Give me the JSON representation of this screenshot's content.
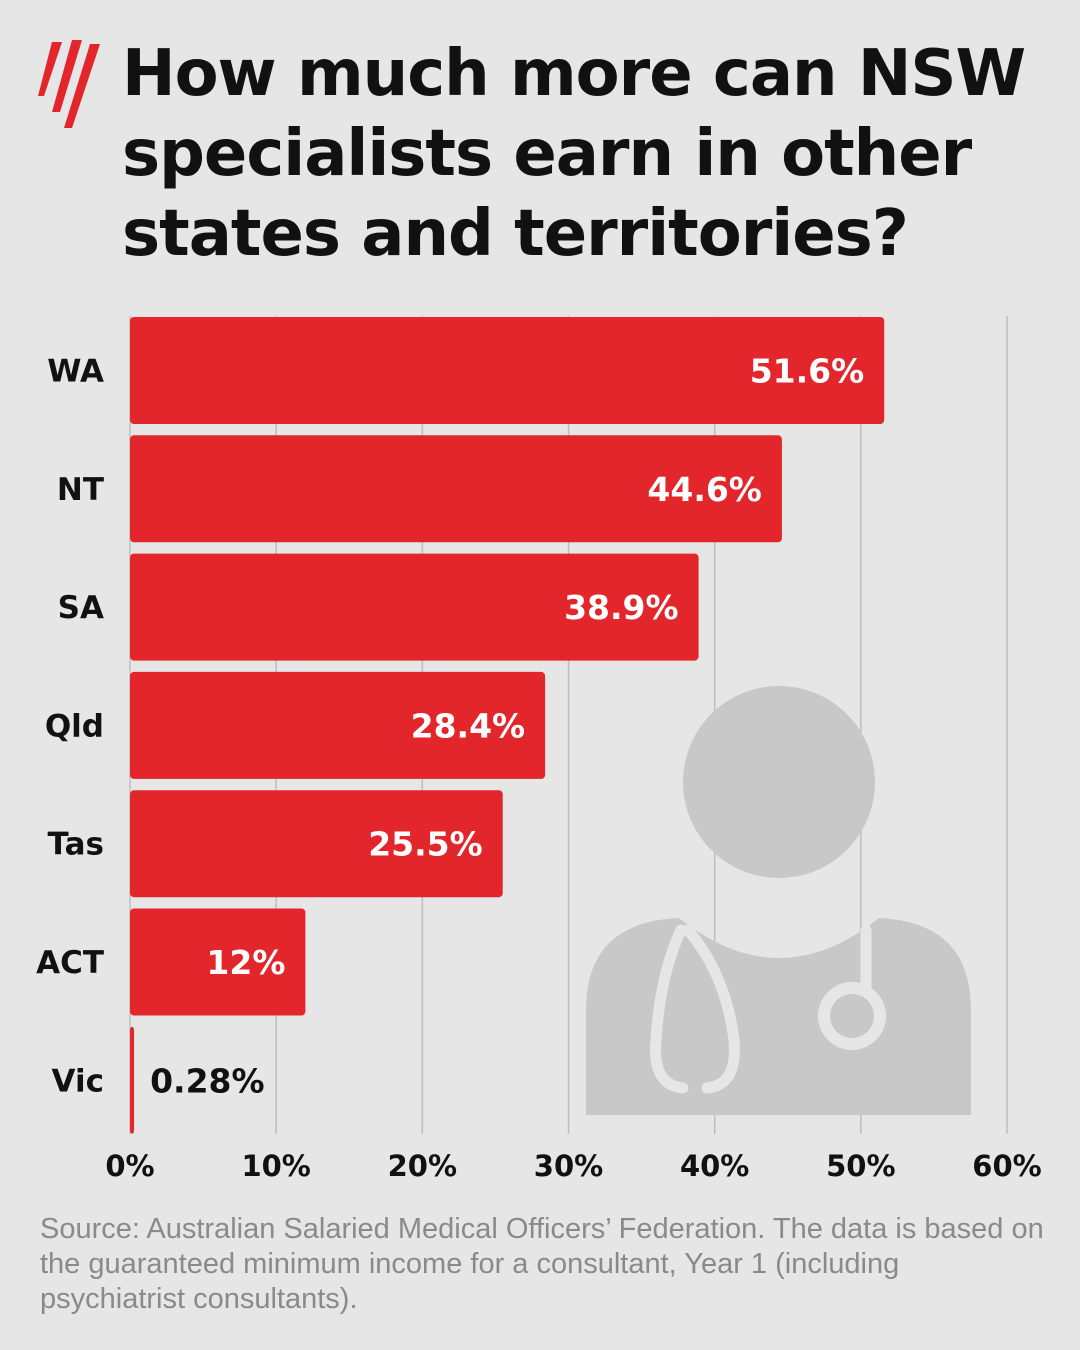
{
  "header": {
    "title": "How much more can NSW specialists earn in other states and territories?",
    "logo_icon": "broadcaster-logo-icon"
  },
  "colors": {
    "background": "#e6e6e6",
    "bar": "#e2262b",
    "grid": "#bdbdbd",
    "illustration": "#c8c8c8",
    "text": "#111111",
    "footnote": "#8a8a8a"
  },
  "illustration_icon": "doctor-stethoscope-icon",
  "chart_data": {
    "type": "bar",
    "orientation": "horizontal",
    "categories": [
      "WA",
      "NT",
      "SA",
      "Qld",
      "Tas",
      "ACT",
      "Vic"
    ],
    "values": [
      51.6,
      44.6,
      38.9,
      28.4,
      25.5,
      12,
      0.28
    ],
    "value_labels": [
      "51.6%",
      "44.6%",
      "38.9%",
      "28.4%",
      "25.5%",
      "12%",
      "0.28%"
    ],
    "title": "",
    "xlabel": "",
    "ylabel": "",
    "xlim": [
      0,
      60
    ],
    "x_ticks": [
      0,
      10,
      20,
      30,
      40,
      50,
      60
    ],
    "x_tick_labels": [
      "0%",
      "10%",
      "20%",
      "30%",
      "40%",
      "50%",
      "60%"
    ],
    "grid": true,
    "legend": "none"
  },
  "footnote": "Source: Australian Salaried Medical Officers’ Federation. The data is based on the guaranteed minimum income for a consultant, Year 1 (including psychiatrist consultants)."
}
